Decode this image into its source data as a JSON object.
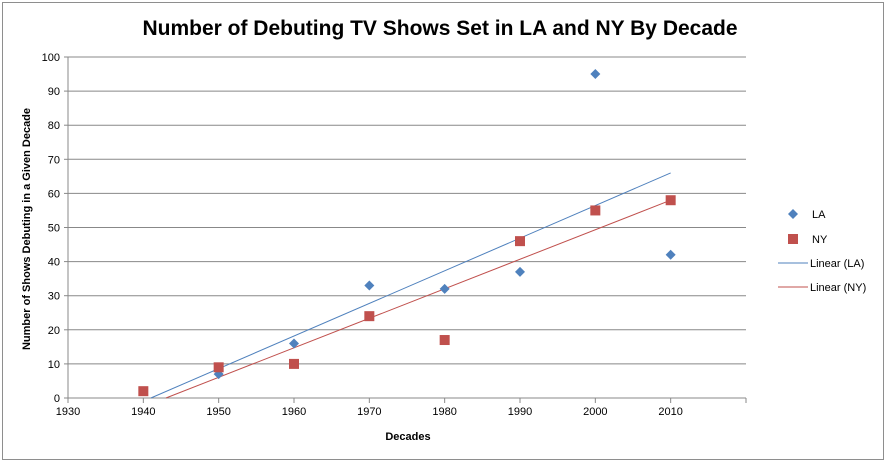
{
  "chart_data": {
    "type": "scatter",
    "title": "Number of Debuting TV Shows Set in LA and NY By Decade",
    "xlabel": "Decades",
    "ylabel": "Number of Shows Debuting in a Given Decade",
    "xlim": [
      1930,
      2020
    ],
    "ylim": [
      0,
      100
    ],
    "x_ticks": [
      1930,
      1940,
      1950,
      1960,
      1970,
      1980,
      1990,
      2000,
      2010
    ],
    "y_ticks": [
      0,
      10,
      20,
      30,
      40,
      50,
      60,
      70,
      80,
      90,
      100
    ],
    "grid": "horizontal",
    "legend_position": "right",
    "series": [
      {
        "name": "LA",
        "marker": "diamond",
        "color": "#4f81bd",
        "points": [
          {
            "x": 1950,
            "y": 7
          },
          {
            "x": 1960,
            "y": 16
          },
          {
            "x": 1970,
            "y": 33
          },
          {
            "x": 1980,
            "y": 32
          },
          {
            "x": 1990,
            "y": 37
          },
          {
            "x": 2000,
            "y": 95
          },
          {
            "x": 2010,
            "y": 42
          }
        ]
      },
      {
        "name": "NY",
        "marker": "square",
        "color": "#c0504d",
        "points": [
          {
            "x": 1940,
            "y": 2
          },
          {
            "x": 1950,
            "y": 9
          },
          {
            "x": 1960,
            "y": 10
          },
          {
            "x": 1970,
            "y": 24
          },
          {
            "x": 1980,
            "y": 17
          },
          {
            "x": 1990,
            "y": 46
          },
          {
            "x": 2000,
            "y": 55
          },
          {
            "x": 2010,
            "y": 58
          }
        ]
      }
    ],
    "trendlines": [
      {
        "name": "Linear (LA)",
        "color": "#4f81bd",
        "from": {
          "x": 1941,
          "y": 0
        },
        "to": {
          "x": 2010,
          "y": 66
        }
      },
      {
        "name": "Linear (NY)",
        "color": "#c0504d",
        "from": {
          "x": 1943,
          "y": 0
        },
        "to": {
          "x": 2010,
          "y": 58
        }
      }
    ]
  }
}
